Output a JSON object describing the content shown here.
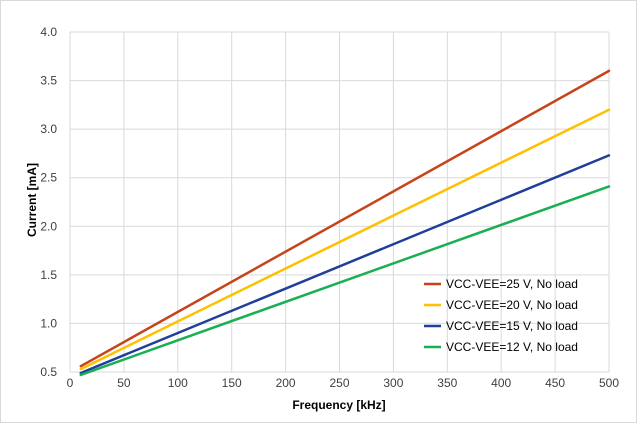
{
  "chart_data": {
    "type": "line",
    "title": "",
    "xlabel": "Frequency [kHz]",
    "ylabel": "Current  [mA]",
    "xlim": [
      0,
      500
    ],
    "ylim": [
      0.5,
      4.0
    ],
    "xticks": [
      0,
      50,
      100,
      150,
      200,
      250,
      300,
      350,
      400,
      450,
      500
    ],
    "xtick_labels": [
      "0",
      "50",
      "100",
      "150",
      "200",
      "250",
      "300",
      "350",
      "400",
      "450",
      "500"
    ],
    "yticks": [
      0.5,
      1.0,
      1.5,
      2.0,
      2.5,
      3.0,
      3.5,
      4.0
    ],
    "ytick_labels": [
      "0.5",
      "1.0",
      "1.5",
      "2.0",
      "2.5",
      "3.0",
      "3.5",
      "4.0"
    ],
    "grid": true,
    "legend_position": "bottom-right",
    "series": [
      {
        "name": "VCC-VEE=25 V, No load",
        "color": "#c5441a",
        "x": [
          10,
          500
        ],
        "y": [
          0.56,
          3.6
        ]
      },
      {
        "name": "VCC-VEE=20 V,  No load",
        "color": "#ffc000",
        "x": [
          10,
          500
        ],
        "y": [
          0.53,
          3.2
        ]
      },
      {
        "name": "VCC-VEE=15 V, No load",
        "color": "#1f3f99",
        "x": [
          10,
          500
        ],
        "y": [
          0.49,
          2.73
        ]
      },
      {
        "name": "VCC-VEE=12 V, No load",
        "color": "#1aaf54",
        "x": [
          10,
          500
        ],
        "y": [
          0.47,
          2.41
        ]
      }
    ]
  }
}
